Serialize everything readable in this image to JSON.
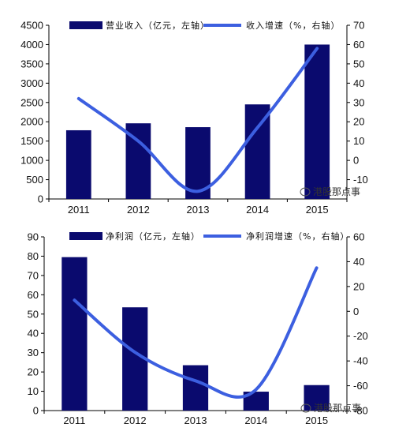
{
  "colors": {
    "bar": "#0a0a6e",
    "line": "#3c5fe0",
    "axis": "#000000"
  },
  "watermark": "港股那点事",
  "watermark_icon": "wechat-icon",
  "chart_data": [
    {
      "type": "bar+line",
      "categories": [
        "2011",
        "2012",
        "2013",
        "2014",
        "2015"
      ],
      "series": [
        {
          "name": "营业收入（亿元，左轴）",
          "kind": "bar",
          "axis": "left",
          "values": [
            1780,
            1960,
            1860,
            2450,
            4000
          ]
        },
        {
          "name": "收入增速（%，右轴）",
          "kind": "line",
          "axis": "right",
          "values": [
            32,
            10,
            -16,
            17,
            58
          ]
        }
      ],
      "left_axis": {
        "ylim": [
          0,
          4500
        ],
        "ticks": [
          "0",
          "500",
          "1000",
          "1500",
          "2000",
          "2500",
          "3000",
          "3500",
          "4000",
          "4500"
        ]
      },
      "right_axis": {
        "ylim": [
          -20,
          70
        ],
        "ticks": [
          "-10",
          "0",
          "10",
          "20",
          "30",
          "40",
          "50",
          "60",
          "70"
        ]
      },
      "legend": "top",
      "grid": false
    },
    {
      "type": "bar+line",
      "categories": [
        "2011",
        "2012",
        "2013",
        "2014",
        "2015"
      ],
      "series": [
        {
          "name": "净利润（亿元，左轴）",
          "kind": "bar",
          "axis": "left",
          "values": [
            79.5,
            53.5,
            23.5,
            9.8,
            13.2
          ]
        },
        {
          "name": "净利润增速（%，右轴）",
          "kind": "line",
          "axis": "right",
          "values": [
            9,
            -33,
            -56,
            -63,
            35
          ]
        }
      ],
      "left_axis": {
        "ylim": [
          0,
          90
        ],
        "ticks": [
          "0",
          "10",
          "20",
          "30",
          "40",
          "50",
          "60",
          "70",
          "80",
          "90"
        ]
      },
      "right_axis": {
        "ylim": [
          -80,
          60
        ],
        "ticks": [
          "-80",
          "-60",
          "-40",
          "-20",
          "0",
          "20",
          "40",
          "60"
        ]
      },
      "legend": "top",
      "grid": false
    }
  ]
}
